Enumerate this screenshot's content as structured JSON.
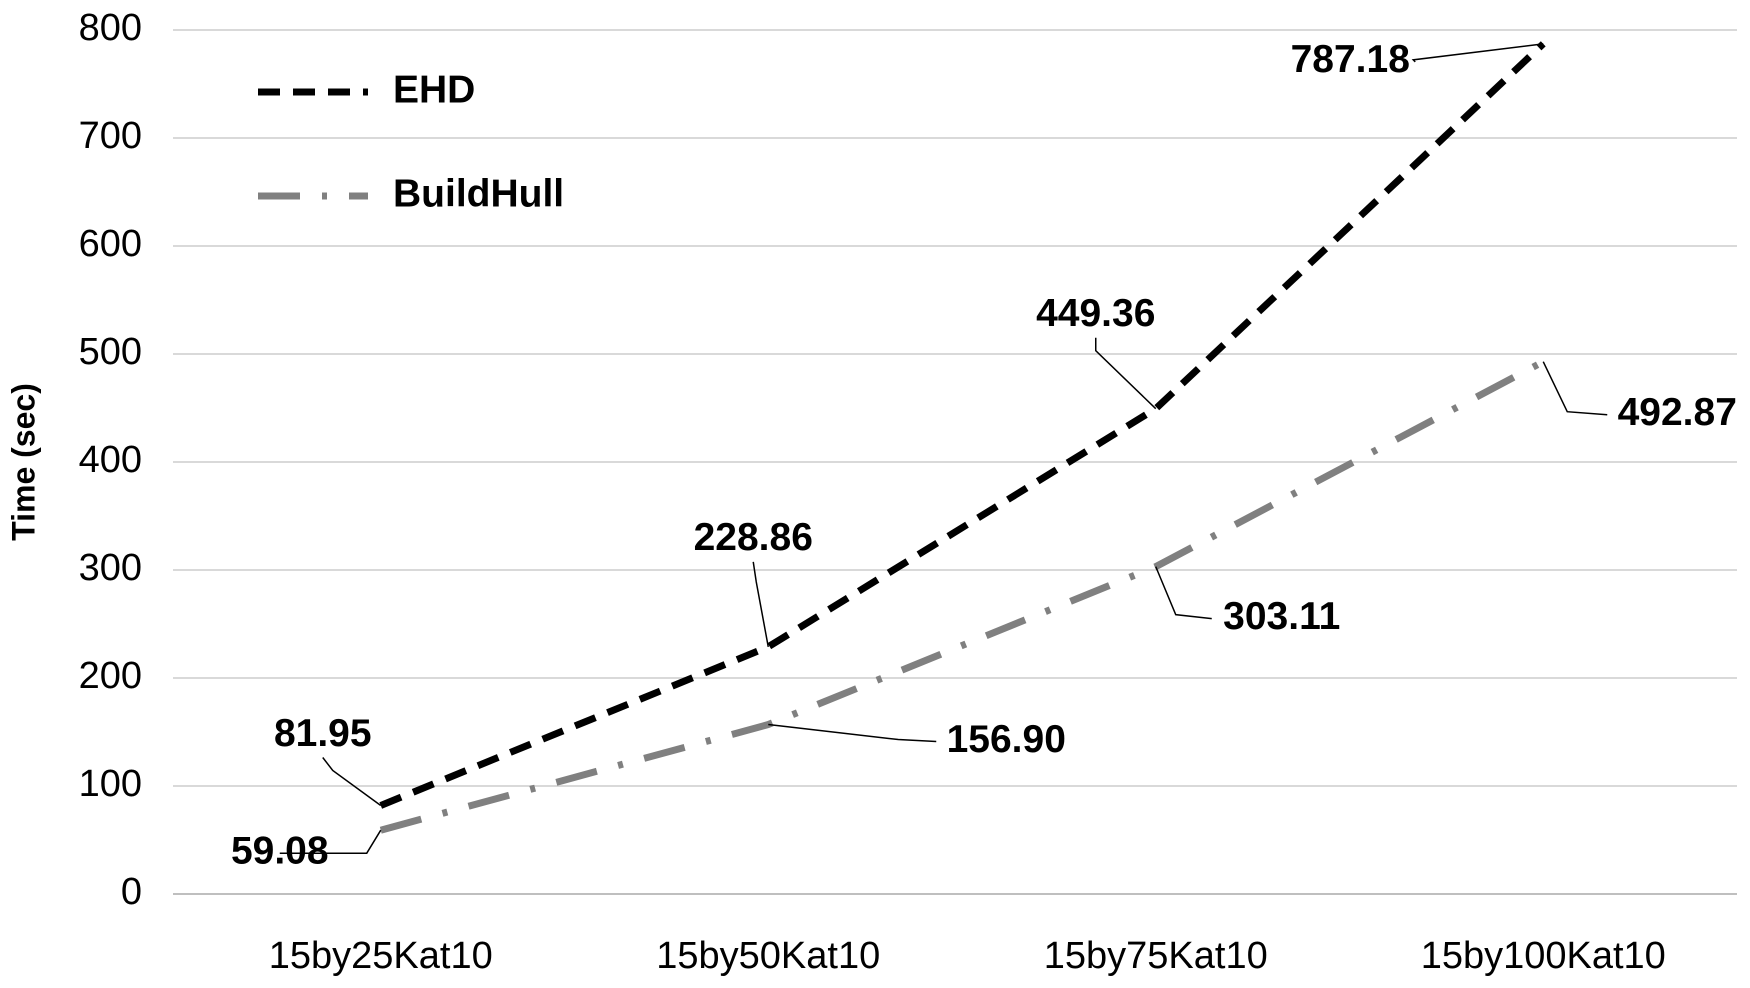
{
  "chart_data": {
    "type": "line",
    "y_label": "Time (sec)",
    "categories": [
      "15by25Kat10",
      "15by50Kat10",
      "15by75Kat10",
      "15by100Kat10"
    ],
    "series": [
      {
        "name": "EHD",
        "color": "#000000",
        "values": [
          81.95,
          228.86,
          449.36,
          787.18
        ],
        "value_labels": [
          "81.95",
          "228.86",
          "449.36",
          "787.18"
        ]
      },
      {
        "name": "BuildHull",
        "color": "#808080",
        "values": [
          59.08,
          156.9,
          303.11,
          492.87
        ],
        "value_labels": [
          "59.08",
          "156.90",
          "303.11",
          "492.87"
        ]
      }
    ],
    "ylim": [
      0,
      800
    ],
    "yticks": [
      0,
      100,
      200,
      300,
      400,
      500,
      600,
      700,
      800
    ],
    "grid": true
  }
}
